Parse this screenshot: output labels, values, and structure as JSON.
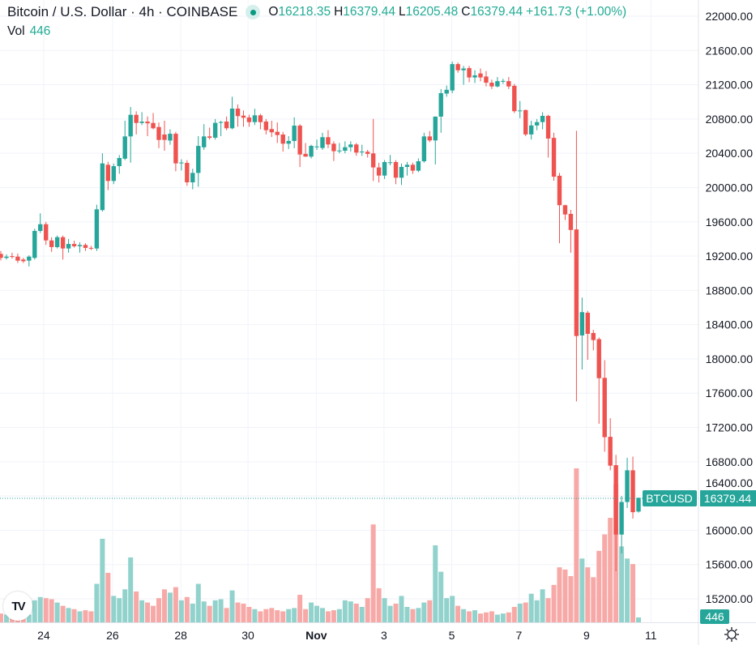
{
  "header": {
    "symbol_title": "Bitcoin / U.S. Dollar · 4h · COINBASE",
    "open_label": "O",
    "open": "16218.35",
    "high_label": "H",
    "high": "16379.44",
    "low_label": "L",
    "low": "16205.48",
    "close_label": "C",
    "close": "16379.44",
    "change": "+161.73 (+1.00%)",
    "volume_label": "Vol",
    "volume": "446"
  },
  "price_tag": {
    "symbol": "BTCUSD",
    "price": "16379.44",
    "volume": "446"
  },
  "colors": {
    "up": "#26a69a",
    "down": "#ef5350",
    "up_vol": "#92d2cc",
    "down_vol": "#f7a9a7",
    "grid": "#f0f3fa"
  },
  "logo_text": "TV",
  "chart_data": {
    "type": "candlestick",
    "title": "Bitcoin / U.S. Dollar · 4h · COINBASE",
    "ylim": [
      15200,
      22000
    ],
    "y_ticks": [
      "15200.00",
      "15600.00",
      "16000.00",
      "16400.00",
      "16800.00",
      "17200.00",
      "17600.00",
      "18000.00",
      "18400.00",
      "18800.00",
      "19200.00",
      "19600.00",
      "20000.00",
      "20400.00",
      "20800.00",
      "21200.00",
      "21600.00",
      "22000.00"
    ],
    "x_ticks": [
      {
        "label": "24",
        "index": 7.6
      },
      {
        "label": "26",
        "index": 19.8
      },
      {
        "label": "28",
        "index": 31.9
      },
      {
        "label": "30",
        "index": 43.8
      },
      {
        "label": "Nov",
        "index": 55.9,
        "bold": true
      },
      {
        "label": "3",
        "index": 67.9
      },
      {
        "label": "5",
        "index": 79.9
      },
      {
        "label": "7",
        "index": 91.8
      },
      {
        "label": "9",
        "index": 103.8
      },
      {
        "label": "11",
        "index": 115.2
      }
    ],
    "candles_ohlcv": [
      [
        19226,
        19260,
        19150,
        19179,
        800
      ],
      [
        19179,
        19220,
        19160,
        19194,
        700
      ],
      [
        19200,
        19240,
        19170,
        19190,
        600
      ],
      [
        19194,
        19230,
        19120,
        19147,
        500
      ],
      [
        19160,
        19180,
        19120,
        19140,
        600
      ],
      [
        19147,
        19210,
        19080,
        19194,
        700
      ],
      [
        19179,
        19520,
        19160,
        19494,
        2000
      ],
      [
        19494,
        19700,
        19470,
        19572,
        2300
      ],
      [
        19572,
        19600,
        19330,
        19383,
        2200
      ],
      [
        19383,
        19420,
        19250,
        19305,
        2100
      ],
      [
        19305,
        19440,
        19290,
        19421,
        1800
      ],
      [
        19421,
        19440,
        19160,
        19289,
        1500
      ],
      [
        19289,
        19400,
        19240,
        19342,
        1300
      ],
      [
        19342,
        19380,
        19300,
        19315,
        1200
      ],
      [
        19315,
        19360,
        19240,
        19330,
        1000
      ],
      [
        19330,
        19350,
        19260,
        19296,
        1100
      ],
      [
        19296,
        19320,
        19270,
        19290,
        1000
      ],
      [
        19289,
        19800,
        19260,
        19746,
        3500
      ],
      [
        19737,
        20400,
        19720,
        20282,
        7600
      ],
      [
        20266,
        20300,
        19970,
        20077,
        4500
      ],
      [
        20077,
        20280,
        20040,
        20250,
        2400
      ],
      [
        20250,
        20380,
        20160,
        20345,
        2200
      ],
      [
        20337,
        20780,
        20320,
        20597,
        3000
      ],
      [
        20597,
        20940,
        20290,
        20849,
        5900
      ],
      [
        20849,
        20890,
        20620,
        20754,
        2800
      ],
      [
        20754,
        20880,
        20730,
        20770,
        2000
      ],
      [
        20770,
        20830,
        20600,
        20750,
        1800
      ],
      [
        20754,
        20870,
        20680,
        20692,
        1500
      ],
      [
        20707,
        20760,
        20460,
        20556,
        2200
      ],
      [
        20619,
        20780,
        20430,
        20556,
        3000
      ],
      [
        20549,
        20680,
        20500,
        20628,
        2700
      ],
      [
        20628,
        20650,
        20190,
        20282,
        3200
      ],
      [
        20288,
        20330,
        20200,
        20292,
        2000
      ],
      [
        20288,
        20320,
        20020,
        20061,
        2300
      ],
      [
        20061,
        20220,
        19980,
        20171,
        1700
      ],
      [
        20171,
        20600,
        20010,
        20486,
        3500
      ],
      [
        20470,
        20740,
        20440,
        20597,
        1900
      ],
      [
        20597,
        20700,
        20560,
        20581,
        1500
      ],
      [
        20582,
        20800,
        20560,
        20755,
        2000
      ],
      [
        20755,
        20780,
        20600,
        20765,
        2100
      ],
      [
        20771,
        20830,
        20670,
        20692,
        1300
      ],
      [
        20692,
        21060,
        20680,
        20922,
        2900
      ],
      [
        20922,
        20970,
        20710,
        20834,
        1800
      ],
      [
        20840,
        20900,
        20710,
        20815,
        1700
      ],
      [
        20818,
        20850,
        20710,
        20764,
        1400
      ],
      [
        20764,
        20920,
        20730,
        20843,
        1200
      ],
      [
        20843,
        20860,
        20680,
        20764,
        1000
      ],
      [
        20771,
        20800,
        20620,
        20670,
        1200
      ],
      [
        20683,
        20780,
        20590,
        20645,
        1300
      ],
      [
        20651,
        20760,
        20520,
        20613,
        1100
      ],
      [
        20619,
        20650,
        20420,
        20512,
        1000
      ],
      [
        20512,
        20600,
        20450,
        20544,
        1200
      ],
      [
        20544,
        20820,
        20460,
        20723,
        1300
      ],
      [
        20723,
        20740,
        20240,
        20386,
        2500
      ],
      [
        20393,
        20520,
        20360,
        20361,
        1200
      ],
      [
        20361,
        20500,
        20340,
        20487,
        1800
      ],
      [
        20475,
        20560,
        20440,
        20480,
        1500
      ],
      [
        20462,
        20640,
        20440,
        20588,
        1300
      ],
      [
        20588,
        20670,
        20460,
        20503,
        1000
      ],
      [
        20512,
        20540,
        20310,
        20424,
        1100
      ],
      [
        20430,
        20520,
        20400,
        20432,
        1200
      ],
      [
        20430,
        20540,
        20400,
        20471,
        2000
      ],
      [
        20471,
        20540,
        20420,
        20503,
        1900
      ],
      [
        20503,
        20520,
        20370,
        20408,
        1700
      ],
      [
        20418,
        20500,
        20370,
        20420,
        1400
      ],
      [
        20418,
        20440,
        20350,
        20393,
        2200
      ],
      [
        20399,
        20802,
        20077,
        20235,
        8900
      ],
      [
        20235,
        20290,
        20060,
        20140,
        3100
      ],
      [
        20140,
        20320,
        20100,
        20298,
        2200
      ],
      [
        20292,
        20380,
        20260,
        20295,
        1500
      ],
      [
        20298,
        20320,
        20040,
        20115,
        1700
      ],
      [
        20115,
        20280,
        20030,
        20241,
        2400
      ],
      [
        20241,
        20300,
        20140,
        20266,
        1400
      ],
      [
        20266,
        20290,
        20160,
        20197,
        1200
      ],
      [
        20197,
        20340,
        20180,
        20307,
        1300
      ],
      [
        20307,
        20640,
        20290,
        20597,
        1800
      ],
      [
        20597,
        20660,
        20530,
        20550,
        2000
      ],
      [
        20550,
        20830,
        20270,
        20828,
        7000
      ],
      [
        20828,
        21150,
        20640,
        21102,
        4600
      ],
      [
        21097,
        21190,
        21060,
        21141,
        2200
      ],
      [
        21133,
        21470,
        21100,
        21441,
        2400
      ],
      [
        21441,
        21460,
        21340,
        21369,
        1500
      ],
      [
        21369,
        21420,
        21200,
        21390,
        1200
      ],
      [
        21394,
        21420,
        21230,
        21285,
        1000
      ],
      [
        21285,
        21370,
        21220,
        21310,
        1100
      ],
      [
        21332,
        21390,
        21240,
        21285,
        800
      ],
      [
        21296,
        21360,
        21180,
        21224,
        900
      ],
      [
        21224,
        21260,
        21150,
        21180,
        1000
      ],
      [
        21180,
        21290,
        21170,
        21242,
        700
      ],
      [
        21242,
        21270,
        21210,
        21245,
        800
      ],
      [
        21242,
        21290,
        21150,
        21180,
        900
      ],
      [
        21188,
        21210,
        20870,
        20891,
        1400
      ],
      [
        20898,
        21010,
        20810,
        20900,
        1700
      ],
      [
        20905,
        20910,
        20600,
        20620,
        1800
      ],
      [
        20620,
        20780,
        20560,
        20725,
        2600
      ],
      [
        20725,
        20800,
        20670,
        20764,
        2000
      ],
      [
        20764,
        20880,
        20680,
        20837,
        3000
      ],
      [
        20837,
        20850,
        20350,
        20572,
        2200
      ],
      [
        20580,
        20640,
        20080,
        20127,
        3400
      ],
      [
        20138,
        20170,
        19350,
        19794,
        5000
      ],
      [
        19794,
        19800,
        19620,
        19686,
        4800
      ],
      [
        19693,
        19740,
        19240,
        19505,
        4200
      ],
      [
        19512,
        20663,
        17504,
        18267,
        14000
      ],
      [
        18274,
        18716,
        17876,
        18546,
        5800
      ],
      [
        18539,
        18560,
        17990,
        18293,
        5000
      ],
      [
        18303,
        18340,
        18100,
        18220,
        4100
      ],
      [
        18231,
        18250,
        17243,
        17775,
        6500
      ],
      [
        17779,
        17985,
        16917,
        17087,
        8000
      ],
      [
        17091,
        17308,
        16700,
        16754,
        9500
      ],
      [
        16760,
        16880,
        15522,
        15950,
        12600
      ],
      [
        15950,
        16400,
        15730,
        16330,
        6900
      ],
      [
        16330,
        16846,
        16260,
        16700,
        5800
      ],
      [
        16700,
        16860,
        16137,
        16211,
        5300
      ],
      [
        16218.35,
        16379.44,
        16205.48,
        16379.44,
        446
      ]
    ]
  }
}
